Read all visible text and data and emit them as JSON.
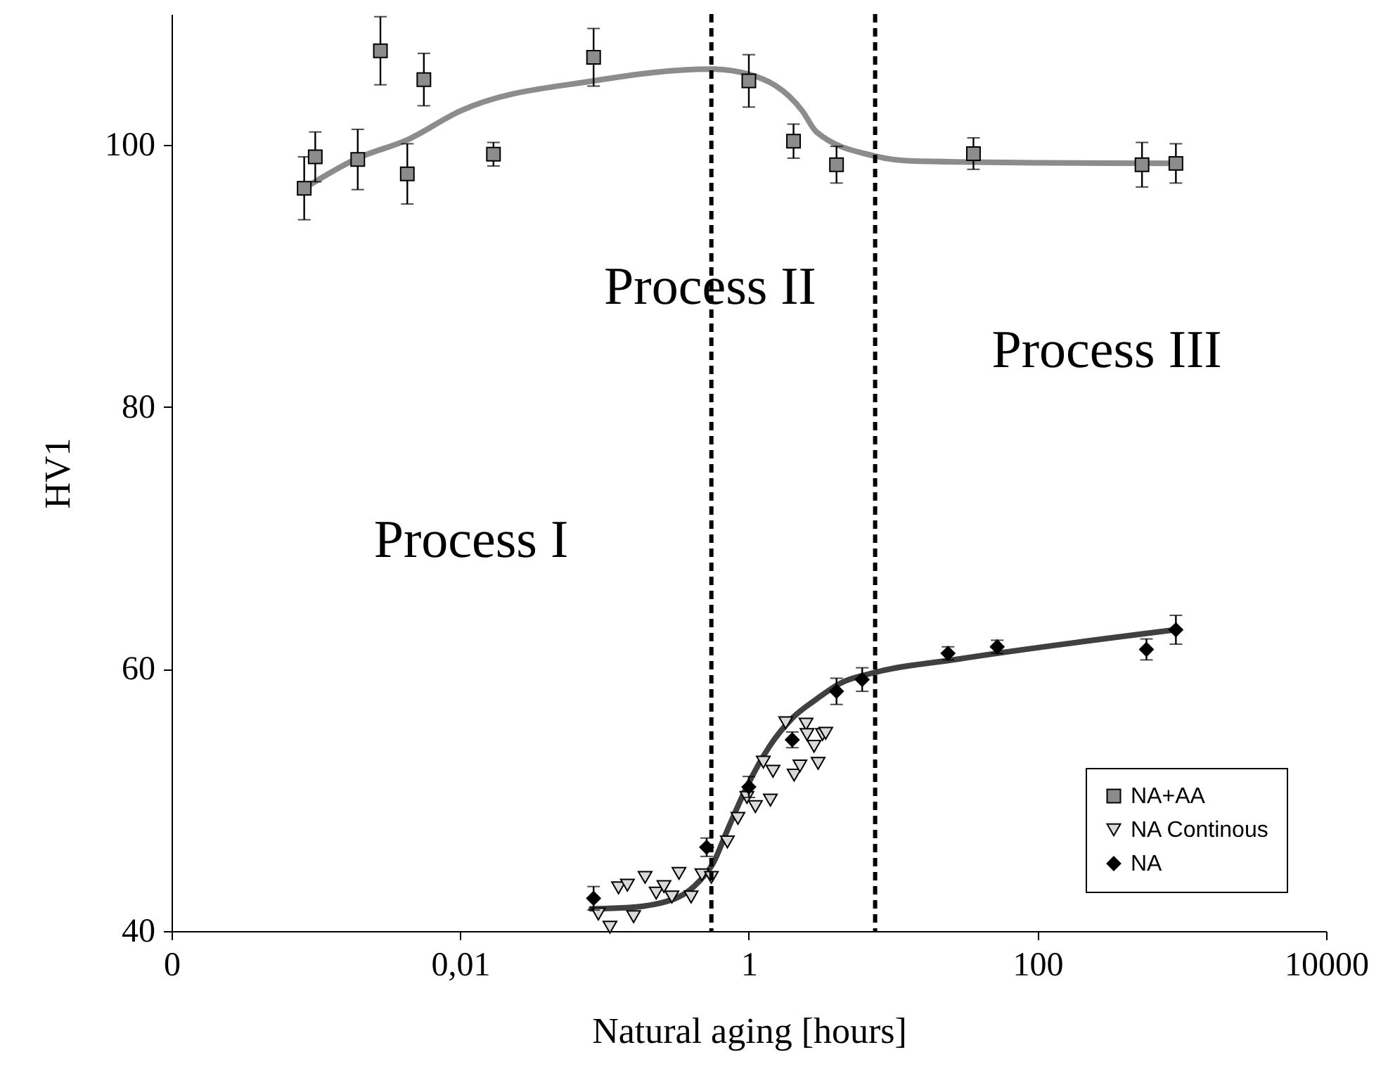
{
  "chart_data": {
    "type": "scatter",
    "xlabel": "Natural aging [hours]",
    "ylabel": "HV1",
    "log": "x",
    "xlim": [
      0.0001,
      10000
    ],
    "xticks": [
      {
        "value": 0.0001,
        "label": "0"
      },
      {
        "value": 0.01,
        "label": "0,01"
      },
      1,
      100,
      {
        "value": 10000,
        "label": "10000"
      }
    ],
    "ylim": [
      40,
      110
    ],
    "yticks": [
      40,
      60,
      80,
      100
    ],
    "grid": false,
    "legend": "bottom right",
    "series": [
      {
        "type": "line",
        "color": "#8c8c8c",
        "x": [
          0.00083,
          0.00195,
          0.0043,
          0.01,
          0.084,
          0.55,
          1.0,
          2.35,
          2.94,
          7.2,
          13,
          100,
          910
        ],
        "values": [
          96.7,
          99.0,
          100.4,
          102.6,
          104.9,
          105.8,
          105.4,
          102.6,
          101.0,
          99.2,
          98.8,
          98.65,
          98.6
        ]
      },
      {
        "type": "line",
        "color": "#404040",
        "x": [
          0.081,
          0.148,
          0.311,
          0.453,
          0.567,
          0.71,
          0.957,
          1.39,
          2.02,
          2.94,
          4.27,
          7.2,
          27.7,
          904
        ],
        "values": [
          41.7,
          41.8,
          42.5,
          43.8,
          45.2,
          47.7,
          50.9,
          54.1,
          56.3,
          57.7,
          58.9,
          59.7,
          60.75,
          63.0
        ]
      },
      {
        "name": "NA+AA",
        "marker": "square",
        "color": "#8c8c8c",
        "x": [
          0.00083,
          0.00099,
          0.00195,
          0.0028,
          0.0043,
          0.0056,
          0.017,
          0.084,
          1.0,
          2.04,
          4.05,
          36,
          530,
          910
        ],
        "values": [
          96.7,
          99.1,
          98.9,
          107.2,
          97.8,
          105.0,
          99.3,
          106.7,
          104.9,
          100.3,
          98.5,
          99.35,
          98.5,
          98.6
        ],
        "errors": [
          2.4,
          1.9,
          2.3,
          2.6,
          2.3,
          2.0,
          0.9,
          2.2,
          2.0,
          1.3,
          1.4,
          1.2,
          1.7,
          1.5
        ]
      },
      {
        "name": "NA Continous",
        "marker": "triangle-down",
        "color": "#d9d9d9",
        "x": [
          0.0906,
          0.109,
          0.125,
          0.144,
          0.159,
          0.191,
          0.228,
          0.258,
          0.293,
          0.328,
          0.398,
          0.473,
          0.55,
          0.71,
          0.84,
          0.97,
          1.11,
          1.26,
          1.41,
          1.47,
          1.8,
          2.06,
          2.26,
          2.49,
          2.53,
          2.83,
          3.02,
          3.24,
          3.41
        ],
        "values": [
          41.3,
          40.3,
          43.3,
          43.5,
          41.1,
          44.1,
          42.9,
          43.4,
          42.6,
          44.4,
          42.6,
          44.3,
          44.1,
          46.8,
          48.6,
          50.2,
          49.5,
          52.9,
          50.0,
          52.2,
          55.9,
          51.9,
          52.6,
          55.8,
          55.0,
          54.1,
          52.8,
          55.0,
          55.1
        ]
      },
      {
        "name": "NA",
        "marker": "diamond",
        "color": "#000000",
        "x": [
          0.084,
          0.51,
          1.0,
          2.0,
          4.05,
          6.1,
          24,
          52.6,
          569,
          910
        ],
        "values": [
          42.5,
          46.4,
          51.0,
          54.6,
          58.3,
          59.2,
          61.2,
          61.7,
          61.5,
          63.0
        ],
        "errors": [
          0.9,
          0.7,
          0.8,
          0.6,
          1.0,
          0.9,
          0.5,
          0.5,
          0.8,
          1.1
        ]
      }
    ],
    "ref_lines": [
      {
        "axis": "x",
        "value": 0.55,
        "line_style": "dashed",
        "color": "#000000"
      },
      {
        "axis": "x",
        "value": 7.5,
        "line_style": "dashed",
        "color": "#000000"
      }
    ],
    "annotations": [
      "Process I",
      "Process II",
      "Process III"
    ]
  }
}
